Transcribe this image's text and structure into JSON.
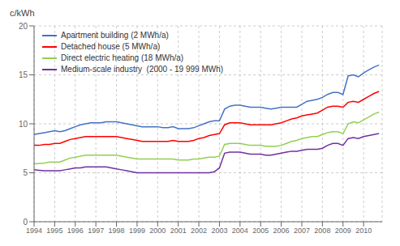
{
  "chart_data": {
    "type": "line",
    "title": "",
    "ylabel": "c/kWh",
    "x": [
      1994,
      1994.25,
      1994.5,
      1994.75,
      1995,
      1995.25,
      1995.5,
      1995.75,
      1996,
      1996.25,
      1996.5,
      1996.75,
      1997,
      1997.25,
      1997.5,
      1997.75,
      1998,
      1998.25,
      1998.5,
      1998.75,
      1999,
      1999.25,
      1999.5,
      1999.75,
      2000,
      2000.25,
      2000.5,
      2000.75,
      2001,
      2001.25,
      2001.5,
      2001.75,
      2002,
      2002.25,
      2002.5,
      2002.75,
      2003,
      2003.25,
      2003.5,
      2003.75,
      2004,
      2004.25,
      2004.5,
      2004.75,
      2005,
      2005.25,
      2005.5,
      2005.75,
      2006,
      2006.25,
      2006.5,
      2006.75,
      2007,
      2007.25,
      2007.5,
      2007.75,
      2008,
      2008.25,
      2008.5,
      2008.75,
      2009,
      2009.25,
      2009.5,
      2009.75,
      2010,
      2010.25,
      2010.5,
      2010.75
    ],
    "xlim": [
      1994,
      2010.9
    ],
    "xticks": [
      1994,
      1995,
      1996,
      1997,
      1998,
      1999,
      2000,
      2001,
      2002,
      2003,
      2004,
      2005,
      2006,
      2007,
      2008,
      2009,
      2010
    ],
    "ylim": [
      0,
      20
    ],
    "yticks": [
      0,
      5,
      10,
      15,
      20
    ],
    "grid": true,
    "legend": "top-left",
    "series": [
      {
        "name": "Apartment building (2 MWh/a)",
        "color": "#4472C4",
        "values": [
          8.9,
          9.0,
          9.1,
          9.2,
          9.3,
          9.2,
          9.3,
          9.5,
          9.7,
          9.9,
          10.0,
          10.1,
          10.1,
          10.1,
          10.2,
          10.2,
          10.2,
          10.1,
          10.0,
          9.9,
          9.8,
          9.7,
          9.7,
          9.7,
          9.7,
          9.6,
          9.6,
          9.7,
          9.5,
          9.5,
          9.5,
          9.6,
          9.8,
          10.0,
          10.2,
          10.3,
          10.3,
          11.5,
          11.8,
          11.9,
          11.9,
          11.8,
          11.7,
          11.7,
          11.7,
          11.6,
          11.5,
          11.6,
          11.7,
          11.7,
          11.7,
          11.7,
          12.0,
          12.3,
          12.4,
          12.5,
          12.7,
          13.0,
          13.2,
          13.2,
          13.0,
          14.9,
          15.0,
          14.8,
          15.2,
          15.5,
          15.8,
          16.0
        ]
      },
      {
        "name": "Detached house (5 MWh/a)",
        "color": "#FF0000",
        "values": [
          7.8,
          7.8,
          7.9,
          7.9,
          8.0,
          8.0,
          8.2,
          8.4,
          8.5,
          8.6,
          8.7,
          8.7,
          8.7,
          8.7,
          8.7,
          8.7,
          8.7,
          8.6,
          8.5,
          8.4,
          8.3,
          8.2,
          8.2,
          8.2,
          8.2,
          8.2,
          8.2,
          8.3,
          8.2,
          8.2,
          8.2,
          8.3,
          8.5,
          8.6,
          8.8,
          8.9,
          9.0,
          9.9,
          10.1,
          10.1,
          10.1,
          10.0,
          9.9,
          9.9,
          9.9,
          9.9,
          9.9,
          10.0,
          10.1,
          10.3,
          10.5,
          10.6,
          10.8,
          10.9,
          11.0,
          11.1,
          11.4,
          11.7,
          11.8,
          11.8,
          11.7,
          12.2,
          12.3,
          12.2,
          12.5,
          12.8,
          13.1,
          13.3
        ]
      },
      {
        "name": "Direct electric heating (18 MWh/a)",
        "color": "#92D050",
        "values": [
          5.9,
          5.95,
          6.0,
          6.1,
          6.1,
          6.1,
          6.3,
          6.5,
          6.6,
          6.7,
          6.8,
          6.8,
          6.8,
          6.8,
          6.8,
          6.8,
          6.8,
          6.7,
          6.6,
          6.5,
          6.4,
          6.4,
          6.4,
          6.4,
          6.4,
          6.4,
          6.4,
          6.4,
          6.3,
          6.3,
          6.3,
          6.4,
          6.4,
          6.5,
          6.6,
          6.6,
          6.7,
          7.9,
          8.0,
          8.0,
          8.0,
          7.9,
          7.8,
          7.8,
          7.8,
          7.7,
          7.7,
          7.7,
          7.8,
          8.0,
          8.2,
          8.3,
          8.5,
          8.6,
          8.7,
          8.7,
          8.9,
          9.1,
          9.2,
          9.2,
          9.0,
          10.0,
          10.2,
          10.1,
          10.4,
          10.7,
          11.0,
          11.2
        ]
      },
      {
        "name": "Medium-scale industry  (2000 - 19 999 MWh)",
        "color": "#7030A0",
        "values": [
          5.3,
          5.25,
          5.2,
          5.2,
          5.2,
          5.2,
          5.3,
          5.4,
          5.5,
          5.5,
          5.6,
          5.6,
          5.6,
          5.6,
          5.6,
          5.5,
          5.4,
          5.3,
          5.2,
          5.1,
          5.0,
          5.0,
          5.0,
          5.0,
          5.0,
          5.0,
          5.0,
          5.0,
          5.0,
          5.0,
          5.0,
          5.0,
          5.0,
          5.0,
          5.0,
          5.1,
          5.5,
          7.0,
          7.1,
          7.1,
          7.1,
          7.0,
          6.9,
          6.9,
          6.9,
          6.8,
          6.8,
          6.9,
          7.0,
          7.1,
          7.2,
          7.2,
          7.3,
          7.4,
          7.4,
          7.4,
          7.5,
          7.8,
          8.0,
          8.0,
          7.8,
          8.5,
          8.6,
          8.5,
          8.7,
          8.8,
          8.9,
          9.0
        ]
      }
    ]
  }
}
